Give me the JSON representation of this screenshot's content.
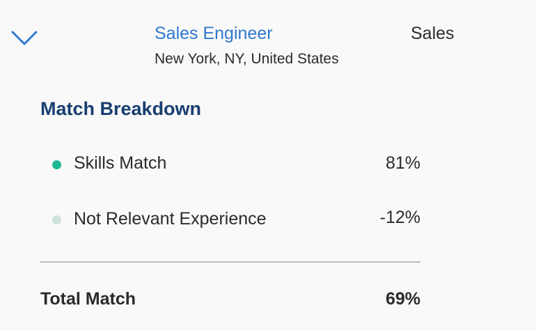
{
  "job": {
    "title": "Sales Engineer",
    "location": "New York, NY, United States",
    "department": "Sales"
  },
  "breakdown": {
    "heading": "Match Breakdown",
    "items": [
      {
        "label": "Skills Match",
        "value": "81%"
      },
      {
        "label": "Not Relevant Experience",
        "value": "-12%"
      }
    ],
    "total": {
      "label": "Total Match",
      "value": "69%"
    }
  }
}
